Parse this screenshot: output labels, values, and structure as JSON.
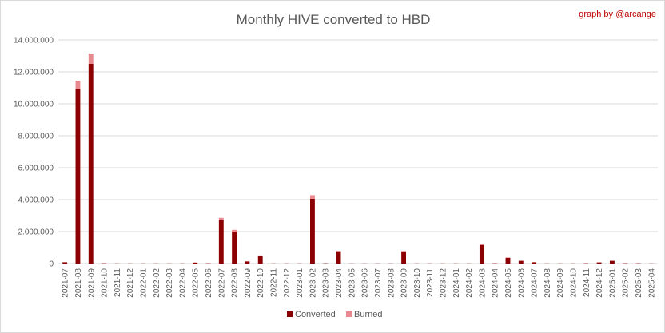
{
  "chart_data": {
    "type": "bar",
    "stacked": true,
    "title": "Monthly HIVE converted to HBD",
    "credit": "graph by @arcange",
    "xlabel": "",
    "ylabel": "",
    "ylim": [
      0,
      14000000
    ],
    "y_ticks": [
      0,
      2000000,
      4000000,
      6000000,
      8000000,
      10000000,
      12000000,
      14000000
    ],
    "y_tick_labels": [
      "0",
      "2.000.000",
      "4.000.000",
      "6.000.000",
      "8.000.000",
      "10.000.000",
      "12.000.000",
      "14.000.000"
    ],
    "grid": true,
    "legend_position": "bottom",
    "categories": [
      "2021-07",
      "2021-08",
      "2021-09",
      "2021-10",
      "2021-11",
      "2021-12",
      "2022-01",
      "2022-02",
      "2022-03",
      "2022-04",
      "2022-05",
      "2022-06",
      "2022-07",
      "2022-08",
      "2022-09",
      "2022-10",
      "2022-11",
      "2022-12",
      "2023-01",
      "2023-02",
      "2023-03",
      "2023-04",
      "2023-05",
      "2023-06",
      "2023-07",
      "2023-08",
      "2023-09",
      "2023-10",
      "2023-11",
      "2023-12",
      "2024-01",
      "2024-02",
      "2024-03",
      "2024-04",
      "2024-05",
      "2024-06",
      "2024-07",
      "2024-08",
      "2024-09",
      "2024-10",
      "2024-11",
      "2024-12",
      "2025-01",
      "2025-02",
      "2025-03",
      "2025-04"
    ],
    "series": [
      {
        "name": "Converted",
        "color": "#8b0000",
        "values": [
          80000,
          10900000,
          12500000,
          20000,
          10000,
          10000,
          10000,
          10000,
          10000,
          10000,
          60000,
          20000,
          2700000,
          2000000,
          130000,
          480000,
          10000,
          10000,
          10000,
          4050000,
          20000,
          760000,
          10000,
          10000,
          10000,
          10000,
          740000,
          10000,
          10000,
          10000,
          10000,
          10000,
          1150000,
          20000,
          350000,
          170000,
          80000,
          10000,
          10000,
          10000,
          20000,
          70000,
          170000,
          20000,
          20000,
          10000
        ]
      },
      {
        "name": "Burned",
        "color": "#e8898f",
        "values": [
          5000,
          550000,
          650000,
          5000,
          5000,
          5000,
          5000,
          5000,
          5000,
          5000,
          10000,
          5000,
          160000,
          110000,
          10000,
          30000,
          5000,
          5000,
          5000,
          230000,
          5000,
          40000,
          5000,
          5000,
          5000,
          5000,
          50000,
          5000,
          5000,
          5000,
          5000,
          5000,
          60000,
          5000,
          30000,
          10000,
          5000,
          5000,
          5000,
          5000,
          5000,
          10000,
          10000,
          5000,
          5000,
          5000
        ]
      }
    ]
  }
}
